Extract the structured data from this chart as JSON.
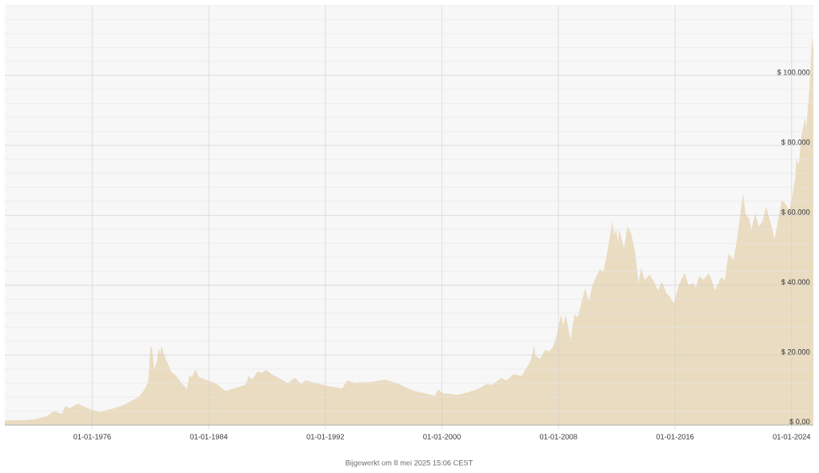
{
  "chart_data": {
    "type": "area",
    "annotations": [
      "Bijgewerkt om 8 mei 2025 15:06 CEST"
    ],
    "x": [
      "1970-01",
      "1971-06",
      "1972-01",
      "1972-06",
      "1972-11",
      "1973-06",
      "1973-09",
      "1973-12",
      "1974-03",
      "1974-06",
      "1975-01",
      "1975-04",
      "1975-11",
      "1976-08",
      "1976-12",
      "1977-07",
      "1978-02",
      "1978-08",
      "1979-03",
      "1979-07",
      "1979-11",
      "1980-01",
      "1980-02",
      "1980-04",
      "1980-06",
      "1980-08",
      "1980-09",
      "1980-10",
      "1980-12",
      "1981-03",
      "1981-06",
      "1981-10",
      "1982-02",
      "1982-07",
      "1982-09",
      "1982-11",
      "1983-02",
      "1983-05",
      "1984-02",
      "1984-07",
      "1985-03",
      "1985-10",
      "1986-07",
      "1986-10",
      "1987-01",
      "1987-05",
      "1987-09",
      "1987-12",
      "1988-05",
      "1988-11",
      "1989-06",
      "1989-12",
      "1990-05",
      "1990-09",
      "1991-08",
      "1992-05",
      "1993-03",
      "1993-07",
      "1994-01",
      "1995-04",
      "1996-02",
      "1996-12",
      "1997-09",
      "1998-03",
      "1999-07",
      "1999-10",
      "2000-01",
      "2001-02",
      "2001-11",
      "2002-08",
      "2003-02",
      "2003-06",
      "2004-02",
      "2004-06",
      "2004-12",
      "2005-07",
      "2006-02",
      "2006-05",
      "2006-06",
      "2006-10",
      "2007-02",
      "2007-05",
      "2007-08",
      "2007-11",
      "2008-03",
      "2008-05",
      "2008-07",
      "2008-11",
      "2009-02",
      "2009-05",
      "2009-11",
      "2010-02",
      "2010-05",
      "2010-11",
      "2011-02",
      "2011-05",
      "2011-09-14",
      "2011-10-24",
      "2011-12-16",
      "2012-02",
      "2012-03",
      "2012-07",
      "2012-10",
      "2013-01",
      "2013-04",
      "2013-07",
      "2013-09",
      "2013-12",
      "2014-04",
      "2014-07",
      "2014-11",
      "2015-02",
      "2015-06",
      "2015-09",
      "2015-12",
      "2016-04",
      "2016-09",
      "2016-12",
      "2017-04",
      "2017-06",
      "2017-09",
      "2017-12",
      "2018-05",
      "2018-10",
      "2019-03",
      "2019-06",
      "2019-09",
      "2020-01",
      "2020-04",
      "2020-09",
      "2020-11",
      "2021-02",
      "2021-04",
      "2021-07",
      "2021-10",
      "2022-01",
      "2022-04",
      "2022-08",
      "2022-11",
      "2023-02",
      "2023-05",
      "2023-09",
      "2023-11",
      "2024-01",
      "2024-04",
      "2024-05",
      "2024-07",
      "2024-09",
      "2024-12",
      "2025-01",
      "2025-03-25",
      "2025-05-10",
      "2025-05-29",
      "2025-06-30"
    ],
    "values": [
      1300,
      1400,
      1600,
      2100,
      2400,
      4100,
      3500,
      3200,
      5500,
      4800,
      6100,
      5600,
      4600,
      3600,
      4200,
      4800,
      5600,
      6600,
      8000,
      9600,
      12200,
      22100,
      22500,
      16000,
      17900,
      22100,
      20300,
      22700,
      20300,
      17900,
      15300,
      14100,
      12300,
      10200,
      14100,
      13700,
      15800,
      13700,
      12500,
      11800,
      9700,
      10500,
      11500,
      14000,
      13000,
      15300,
      14900,
      15800,
      14500,
      13400,
      12000,
      13500,
      11800,
      12800,
      11700,
      11100,
      10500,
      12800,
      12100,
      12400,
      13000,
      12000,
      10500,
      9700,
      8400,
      10200,
      9200,
      8600,
      9400,
      10500,
      11800,
      11500,
      13500,
      12800,
      14500,
      14100,
      18300,
      22600,
      19800,
      18900,
      21600,
      21000,
      22100,
      24800,
      31500,
      28600,
      31500,
      24400,
      31600,
      30900,
      39200,
      35400,
      40000,
      44600,
      44000,
      49100,
      58400,
      54100,
      56100,
      52200,
      56000,
      50700,
      57000,
      54500,
      49900,
      40700,
      45000,
      41500,
      43000,
      41500,
      38500,
      41100,
      37700,
      36600,
      34700,
      40000,
      43600,
      40000,
      40700,
      39200,
      42700,
      41500,
      43400,
      38500,
      42300,
      41500,
      49100,
      47200,
      53000,
      66400,
      60500,
      59000,
      56000,
      60500,
      56800,
      58300,
      62500,
      57500,
      53300,
      59000,
      64400,
      62800,
      60900,
      64400,
      70500,
      75800,
      74600,
      82600,
      87900,
      84900,
      96300,
      107000,
      111200,
      107400
    ],
    "color": "#eadcc1",
    "xlim": [
      "1970-01-01",
      "2025-06-30"
    ],
    "xticks": [
      {
        "value": "1976-01-01",
        "label": "01-01-1976"
      },
      {
        "value": "1984-01-01",
        "label": "01-01-1984"
      },
      {
        "value": "1992-01-01",
        "label": "01-01-1992"
      },
      {
        "value": "2000-01-01",
        "label": "01-01-2000"
      },
      {
        "value": "2008-01-01",
        "label": "01-01-2008"
      },
      {
        "value": "2016-01-01",
        "label": "01-01-2016"
      },
      {
        "value": "2024-01-01",
        "label": "01-01-2024"
      }
    ],
    "ylim": [
      0,
      120000
    ],
    "yticks": [
      {
        "value": 0,
        "label": "$ 0,00"
      },
      {
        "value": 4000,
        "label": null
      },
      {
        "value": 8000,
        "label": null
      },
      {
        "value": 12000,
        "label": null
      },
      {
        "value": 16000,
        "label": null
      },
      {
        "value": 20000,
        "label": "$ 20.000"
      },
      {
        "value": 24000,
        "label": null
      },
      {
        "value": 28000,
        "label": null
      },
      {
        "value": 32000,
        "label": null
      },
      {
        "value": 36000,
        "label": null
      },
      {
        "value": 40000,
        "label": "$ 40.000"
      },
      {
        "value": 44000,
        "label": null
      },
      {
        "value": 48000,
        "label": null
      },
      {
        "value": 52000,
        "label": null
      },
      {
        "value": 56000,
        "label": null
      },
      {
        "value": 60000,
        "label": "$ 60.000"
      },
      {
        "value": 64000,
        "label": null
      },
      {
        "value": 68000,
        "label": null
      },
      {
        "value": 72000,
        "label": null
      },
      {
        "value": 76000,
        "label": null
      },
      {
        "value": 80000,
        "label": "$ 80.000"
      },
      {
        "value": 84000,
        "label": null
      },
      {
        "value": 88000,
        "label": null
      },
      {
        "value": 92000,
        "label": null
      },
      {
        "value": 96000,
        "label": null
      },
      {
        "value": 100000,
        "label": "$ 100.000"
      },
      {
        "value": 104000,
        "label": null
      },
      {
        "value": 108000,
        "label": null
      },
      {
        "value": 112000,
        "label": null
      },
      {
        "value": 116000,
        "label": null
      },
      {
        "value": 120000,
        "label": null
      }
    ],
    "grid": true
  }
}
